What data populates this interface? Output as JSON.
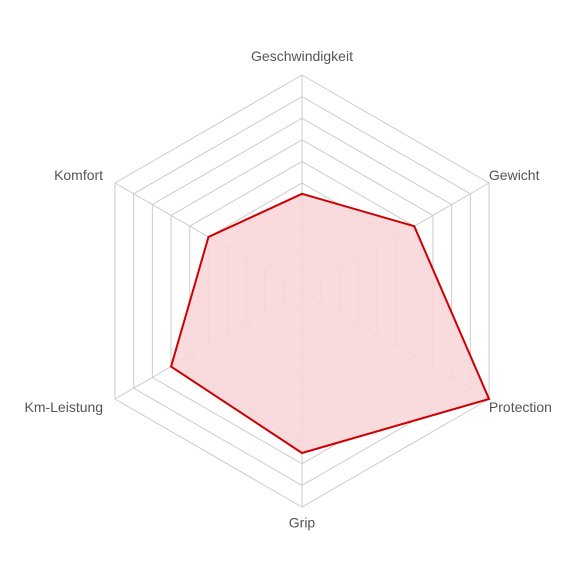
{
  "chart_data": {
    "type": "radar",
    "categories": [
      "Geschwindigkeit",
      "Gewicht",
      "Protection",
      "Grip",
      "Km-Leistung",
      "Komfort"
    ],
    "series": [
      {
        "values": [
          4.5,
          6.0,
          10.0,
          7.5,
          7.0,
          5.0
        ],
        "color": "#cc0000",
        "fill": "#f8d7da"
      }
    ],
    "rlim": [
      0,
      10
    ],
    "grid_rings": 10,
    "grid": true,
    "grid_color": "#cccccc",
    "label_color": "#555555"
  }
}
